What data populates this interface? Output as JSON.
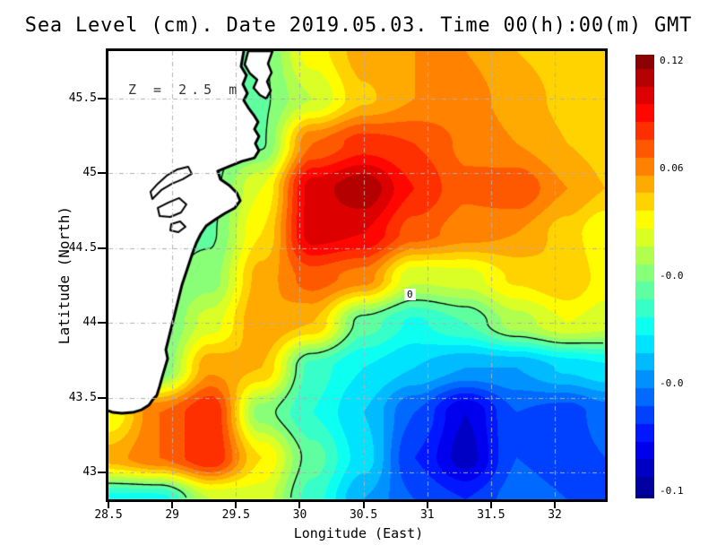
{
  "title": "Sea Level (cm). Date 2019.05.03. Time 00(h):00(m) GMT",
  "annotation": "Z = 2.5 m",
  "axes": {
    "x_label": "Longitude (East)",
    "y_label": "Latitude (North)",
    "x_ticks": [
      28.5,
      29,
      29.5,
      30,
      30.5,
      31,
      31.5,
      32
    ],
    "y_ticks": [
      45.5,
      45,
      44.5,
      44,
      43.5,
      43
    ]
  },
  "colorbar": {
    "labels": [
      "0.12",
      "0.06",
      "-0.0",
      "-0.0",
      "-0.1"
    ],
    "vmin": -0.122,
    "vmax": 0.128,
    "band": 0.01
  },
  "chart_data": {
    "type": "heatmap",
    "units": "cm",
    "colormap": "jet",
    "grid_on": true,
    "bounds": {
      "lon_min": 28.5,
      "lon_max": 32.393,
      "lat_min": 42.82,
      "lat_max": 45.818
    },
    "lons": [
      28.5,
      28.9,
      29.3,
      29.7,
      30.1,
      30.5,
      30.9,
      31.3,
      31.7,
      32.1,
      32.393
    ],
    "lats": [
      45.818,
      45.5,
      45.2,
      44.9,
      44.6,
      44.3,
      44.0,
      43.7,
      43.4,
      43.1,
      42.82
    ],
    "values": [
      [
        -0.004,
        -0.004,
        -0.004,
        -0.002,
        0.035,
        0.055,
        0.06,
        0.06,
        0.05,
        0.045,
        0.04
      ],
      [
        -0.004,
        -0.004,
        -0.004,
        -0.002,
        0.02,
        0.048,
        0.06,
        0.065,
        0.055,
        0.047,
        0.04
      ],
      [
        -0.004,
        -0.004,
        -0.004,
        -0.002,
        0.07,
        0.085,
        0.08,
        0.068,
        0.06,
        0.05,
        0.045
      ],
      [
        -0.004,
        -0.004,
        -0.004,
        0.03,
        0.105,
        0.118,
        0.09,
        0.072,
        0.078,
        0.06,
        0.05
      ],
      [
        -0.004,
        -0.004,
        -0.002,
        0.04,
        0.105,
        0.1,
        0.075,
        0.065,
        0.06,
        0.045,
        0.03
      ],
      [
        -0.004,
        -0.004,
        0.005,
        0.055,
        0.075,
        0.065,
        0.022,
        0.025,
        0.042,
        0.05,
        0.035
      ],
      [
        -0.004,
        -0.004,
        0.025,
        0.06,
        0.05,
        -0.005,
        -0.022,
        -0.01,
        0.015,
        0.03,
        0.025
      ],
      [
        -0.004,
        -0.002,
        0.058,
        0.05,
        -0.015,
        -0.03,
        -0.04,
        -0.05,
        -0.05,
        -0.038,
        -0.032
      ],
      [
        0.03,
        0.07,
        0.09,
        0.005,
        -0.02,
        -0.04,
        -0.07,
        -0.1,
        -0.07,
        -0.075,
        -0.065
      ],
      [
        0.055,
        0.07,
        0.09,
        0.04,
        -0.005,
        -0.035,
        -0.08,
        -0.105,
        -0.07,
        -0.075,
        -0.07
      ],
      [
        -0.025,
        -0.025,
        0.02,
        0.025,
        -0.015,
        -0.05,
        -0.07,
        -0.08,
        -0.065,
        -0.07,
        -0.075
      ]
    ],
    "contour_level": 0,
    "contour_label": "0",
    "contour_label_pos": {
      "lon": 30.861,
      "lat": 44.19
    },
    "coastline": [
      [
        29.561,
        45.818
      ],
      [
        29.54,
        45.716
      ],
      [
        29.582,
        45.656
      ],
      [
        29.554,
        45.596
      ],
      [
        29.589,
        45.536
      ],
      [
        29.561,
        45.488
      ],
      [
        29.596,
        45.44
      ],
      [
        29.638,
        45.392
      ],
      [
        29.673,
        45.344
      ],
      [
        29.645,
        45.296
      ],
      [
        29.68,
        45.248
      ],
      [
        29.652,
        45.2
      ],
      [
        29.68,
        45.152
      ],
      [
        29.645,
        45.104
      ],
      [
        29.547,
        45.081
      ],
      [
        29.442,
        45.045
      ],
      [
        29.357,
        45.015
      ],
      [
        29.378,
        44.961
      ],
      [
        29.449,
        44.919
      ],
      [
        29.505,
        44.871
      ],
      [
        29.533,
        44.817
      ],
      [
        29.491,
        44.769
      ],
      [
        29.413,
        44.733
      ],
      [
        29.336,
        44.691
      ],
      [
        29.266,
        44.649
      ],
      [
        29.224,
        44.595
      ],
      [
        29.189,
        44.535
      ],
      [
        29.16,
        44.469
      ],
      [
        29.132,
        44.397
      ],
      [
        29.104,
        44.325
      ],
      [
        29.076,
        44.253
      ],
      [
        29.055,
        44.181
      ],
      [
        29.034,
        44.109
      ],
      [
        29.013,
        44.037
      ],
      [
        28.992,
        43.965
      ],
      [
        28.971,
        43.893
      ],
      [
        28.95,
        43.821
      ],
      [
        28.964,
        43.761
      ],
      [
        28.943,
        43.701
      ],
      [
        28.922,
        43.641
      ],
      [
        28.901,
        43.575
      ],
      [
        28.879,
        43.515
      ],
      [
        28.851,
        43.491
      ],
      [
        28.816,
        43.449
      ],
      [
        28.76,
        43.419
      ],
      [
        28.69,
        43.401
      ],
      [
        28.605,
        43.395
      ],
      [
        28.535,
        43.401
      ],
      [
        28.5,
        43.413
      ]
    ],
    "island": [
      [
        29.596,
        45.818
      ],
      [
        29.568,
        45.728
      ],
      [
        29.61,
        45.668
      ],
      [
        29.666,
        45.626
      ],
      [
        29.638,
        45.572
      ],
      [
        29.687,
        45.524
      ],
      [
        29.737,
        45.5
      ],
      [
        29.772,
        45.554
      ],
      [
        29.744,
        45.614
      ],
      [
        29.779,
        45.674
      ],
      [
        29.751,
        45.734
      ],
      [
        29.786,
        45.818
      ]
    ],
    "lagoons": [
      [
        [
          28.844,
          44.829
        ],
        [
          28.915,
          44.889
        ],
        [
          28.999,
          44.931
        ],
        [
          29.083,
          44.961
        ],
        [
          29.153,
          44.997
        ],
        [
          29.125,
          45.045
        ],
        [
          29.041,
          45.027
        ],
        [
          28.957,
          44.985
        ],
        [
          28.887,
          44.931
        ],
        [
          28.83,
          44.877
        ]
      ],
      [
        [
          28.887,
          44.769
        ],
        [
          28.971,
          44.805
        ],
        [
          29.055,
          44.835
        ],
        [
          29.111,
          44.793
        ],
        [
          29.069,
          44.739
        ],
        [
          28.985,
          44.709
        ],
        [
          28.901,
          44.715
        ]
      ],
      [
        [
          28.992,
          44.661
        ],
        [
          29.062,
          44.679
        ],
        [
          29.104,
          44.643
        ],
        [
          29.048,
          44.607
        ],
        [
          28.985,
          44.619
        ]
      ]
    ],
    "gridline_color": "#b0b0b0",
    "land_color": "#ffffff",
    "coast_color": "#000000"
  }
}
